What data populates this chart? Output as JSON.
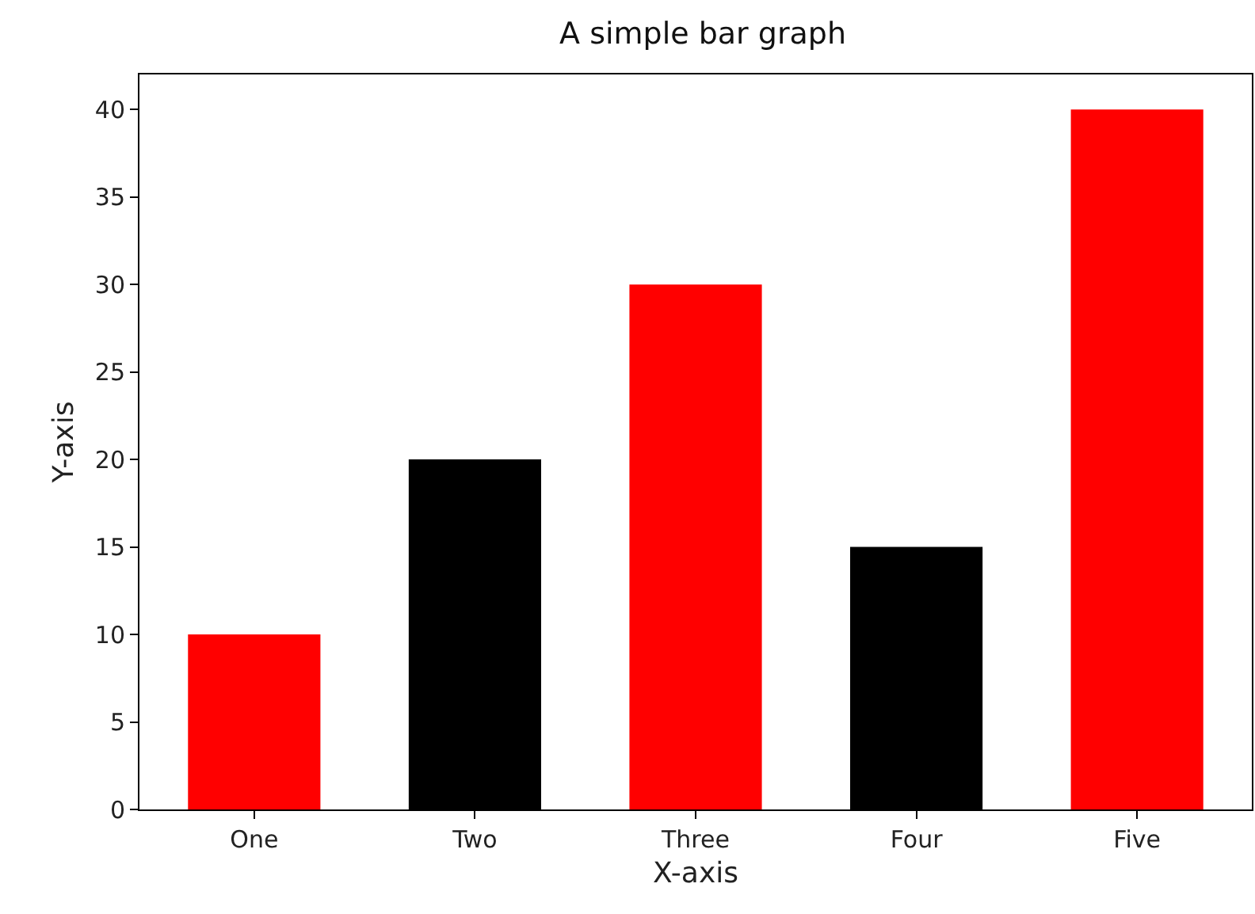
{
  "chart_data": {
    "type": "bar",
    "title": "A simple bar graph",
    "xlabel": "X-axis",
    "ylabel": "Y-axis",
    "categories": [
      "One",
      "Two",
      "Three",
      "Four",
      "Five"
    ],
    "values": [
      10,
      20,
      30,
      15,
      40
    ],
    "colors": [
      "#ff0000",
      "#000000",
      "#ff0000",
      "#000000",
      "#ff0000"
    ],
    "ylim": [
      0,
      42
    ],
    "yticks": [
      0,
      5,
      10,
      15,
      20,
      25,
      30,
      35,
      40
    ],
    "grid": false
  }
}
